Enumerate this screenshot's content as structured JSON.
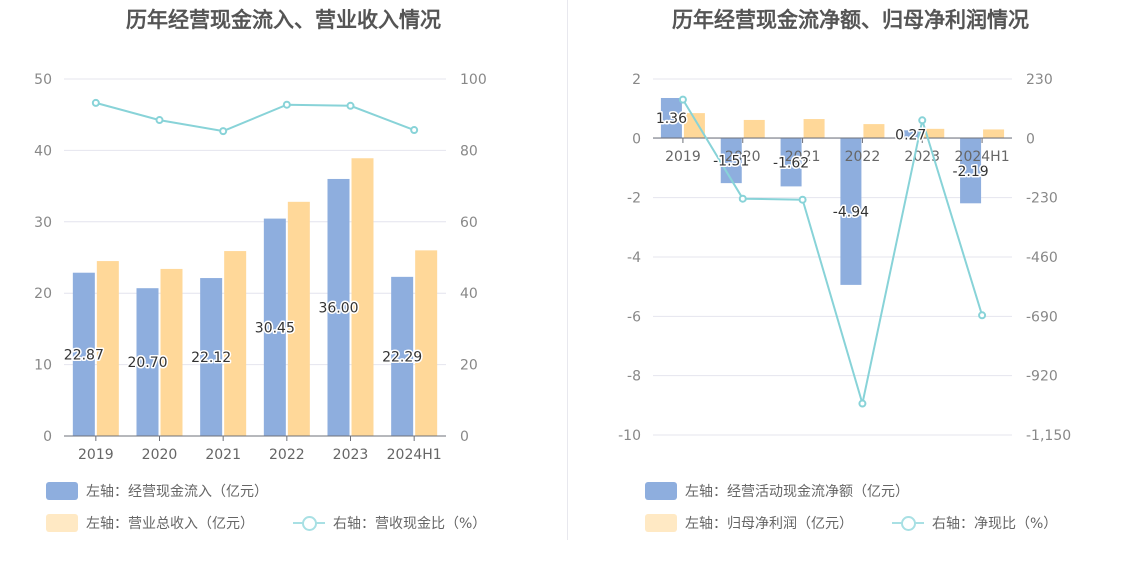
{
  "colors": {
    "blue": "#8eaede",
    "orange": "#ffd899",
    "line": "#88d3d8",
    "grid": "#e4e4ee"
  },
  "chart_data": [
    {
      "type": "bar",
      "title": "历年经营现金流入、营业收入情况",
      "categories": [
        "2019",
        "2020",
        "2021",
        "2022",
        "2023",
        "2024H1"
      ],
      "left_axis": {
        "ylim": [
          0,
          50
        ],
        "ticks": [
          "0",
          "10",
          "20",
          "30",
          "40",
          "50"
        ]
      },
      "right_axis": {
        "ylim": [
          0,
          100
        ],
        "ticks": [
          "0",
          "20",
          "40",
          "60",
          "80",
          "100"
        ]
      },
      "series": [
        {
          "name": "左轴：经营现金流入（亿元）",
          "kind": "bar",
          "axis": "left",
          "color": "#8eaede",
          "values": [
            22.87,
            20.7,
            22.12,
            30.45,
            36.0,
            22.29
          ],
          "labels": [
            "22.87",
            "20.70",
            "22.12",
            "30.45",
            "36.00",
            "22.29"
          ]
        },
        {
          "name": "左轴：营业总收入（亿元）",
          "kind": "bar",
          "axis": "left",
          "color": "#ffd899",
          "values": [
            24.5,
            23.4,
            25.9,
            32.8,
            38.9,
            26.0
          ]
        },
        {
          "name": "右轴：营收现金比（%）",
          "kind": "line",
          "axis": "right",
          "color": "#88d3d8",
          "values": [
            93.3,
            88.5,
            85.4,
            92.8,
            92.5,
            85.7
          ]
        }
      ],
      "legend_position": "bottom"
    },
    {
      "type": "bar",
      "title": "历年经营现金流净额、归母净利润情况",
      "categories": [
        "2019",
        "2020",
        "2021",
        "2022",
        "2023",
        "2024H1"
      ],
      "left_axis": {
        "ylim": [
          -10,
          2
        ],
        "ticks": [
          "-10",
          "-8",
          "-6",
          "-4",
          "-2",
          "0",
          "2"
        ]
      },
      "right_axis": {
        "ylim": [
          -1150,
          230
        ],
        "ticks": [
          "-1,150",
          "-920",
          "-690",
          "-460",
          "-230",
          "0",
          "230"
        ]
      },
      "series": [
        {
          "name": "左轴：经营活动现金流净额（亿元）",
          "kind": "bar",
          "axis": "left",
          "color": "#8eaede",
          "values": [
            1.36,
            -1.51,
            -1.62,
            -4.94,
            0.27,
            -2.19
          ],
          "labels": [
            "1.36",
            "-1.51",
            "-1.62",
            "-4.94",
            "0.27",
            "-2.19"
          ]
        },
        {
          "name": "左轴：归母净利润（亿元）",
          "kind": "bar",
          "axis": "left",
          "color": "#ffd899",
          "values": [
            0.85,
            0.62,
            0.65,
            0.48,
            0.32,
            0.3
          ]
        },
        {
          "name": "右轴：净现比（%）",
          "kind": "line",
          "axis": "right",
          "color": "#88d3d8",
          "values": [
            150,
            -234,
            -238,
            -1028,
            70,
            -686
          ]
        }
      ],
      "legend_position": "bottom"
    }
  ]
}
